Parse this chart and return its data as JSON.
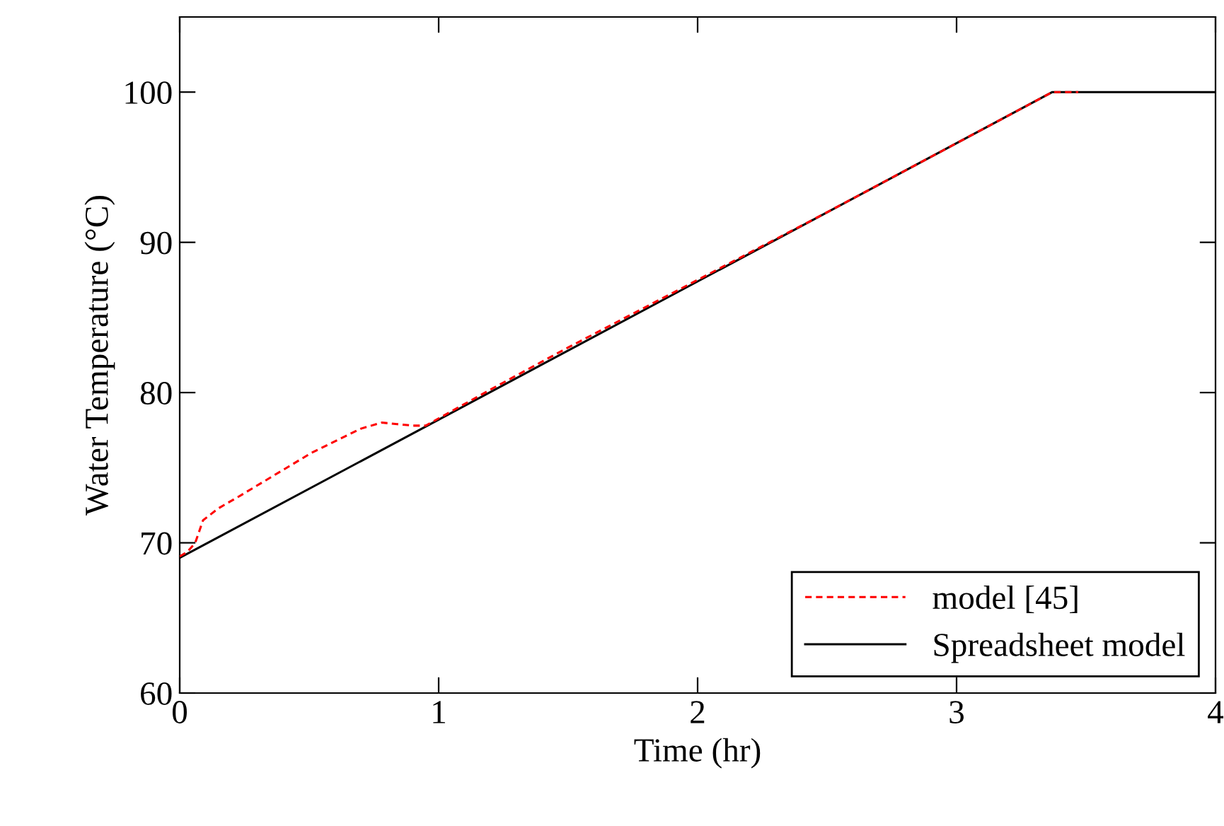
{
  "chart_data": {
    "type": "line",
    "xlabel": "Time (hr)",
    "ylabel": "Water Temperature (°C)",
    "xlim": [
      0,
      4
    ],
    "ylim": [
      60,
      105
    ],
    "xticks": [
      0,
      1,
      2,
      3,
      4
    ],
    "yticks": [
      60,
      70,
      80,
      90,
      100
    ],
    "grid": false,
    "legend": "bottom right",
    "series": [
      {
        "name": "model [45]",
        "color": "#ff0000",
        "line_style": "dashed",
        "x": [
          0,
          0.03,
          0.06,
          0.09,
          0.15,
          0.23,
          0.51,
          0.7,
          0.78,
          0.84,
          0.9,
          0.95,
          1.2,
          1.5,
          2,
          2.5,
          3,
          3.37,
          3.47
        ],
        "values": [
          69.1,
          69.4,
          70.0,
          71.5,
          72.3,
          73.1,
          76.0,
          77.6,
          78.0,
          77.9,
          77.8,
          77.8,
          80.2,
          83.0,
          87.5,
          92.0,
          96.6,
          100,
          100
        ]
      },
      {
        "name": "Spreadsheet model",
        "color": "#000000",
        "line_style": "solid",
        "x": [
          0,
          3.37,
          4
        ],
        "values": [
          69,
          100,
          100
        ]
      }
    ]
  }
}
